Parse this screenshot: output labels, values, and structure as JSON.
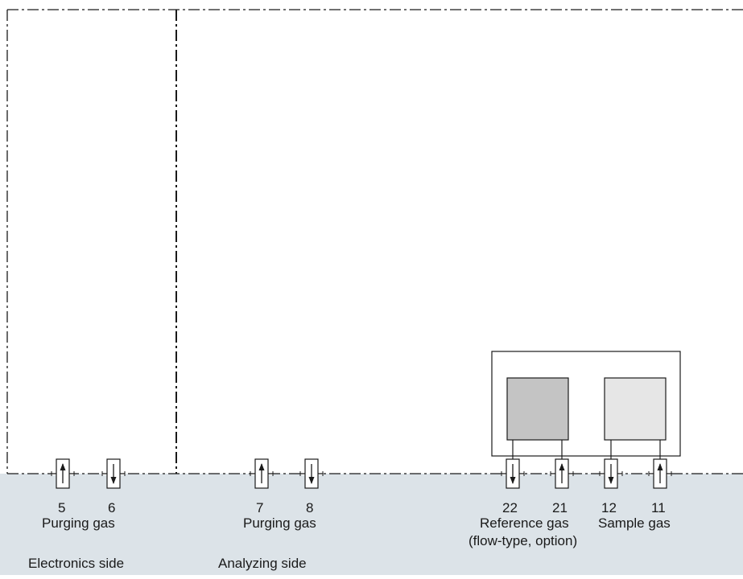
{
  "colors": {
    "base_panel": "#dce3e8",
    "frame_line": "#1a1a1a",
    "cell_dark": "#c4c4c4",
    "cell_light": "#e6e6e6"
  },
  "ports": [
    {
      "number": "5",
      "direction": "up"
    },
    {
      "number": "6",
      "direction": "down"
    },
    {
      "number": "7",
      "direction": "up"
    },
    {
      "number": "8",
      "direction": "down"
    },
    {
      "number": "22",
      "direction": "down"
    },
    {
      "number": "21",
      "direction": "up"
    },
    {
      "number": "12",
      "direction": "down"
    },
    {
      "number": "11",
      "direction": "up"
    }
  ],
  "labels": {
    "purging_gas_left": "Purging gas",
    "purging_gas_right": "Purging gas",
    "reference_gas": "Reference gas",
    "reference_gas_note": "(flow-type, option)",
    "sample_gas": "Sample gas",
    "electronics_side": "Electronics side",
    "analyzing_side": "Analyzing side"
  }
}
